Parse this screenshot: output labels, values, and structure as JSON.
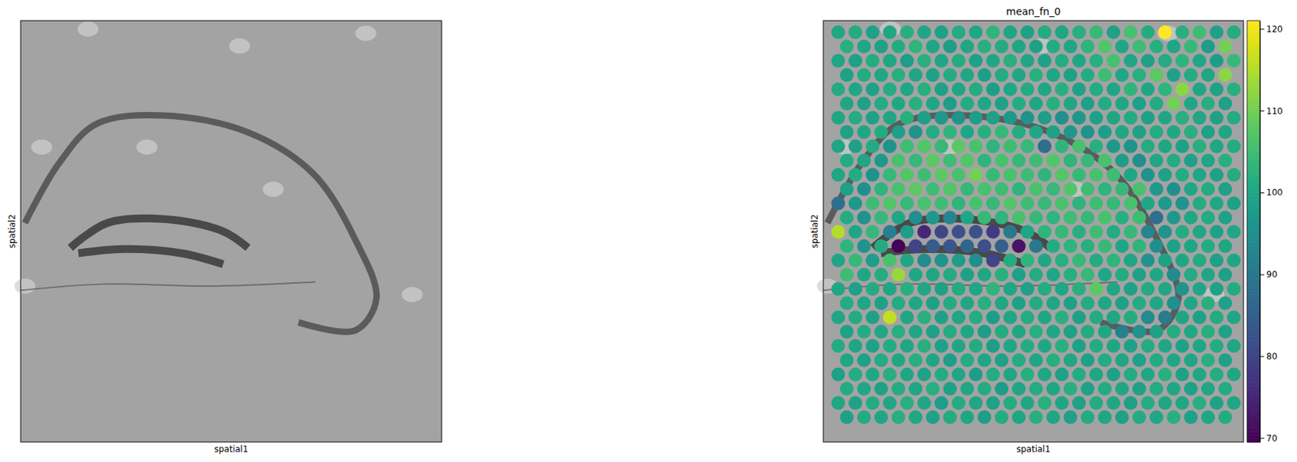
{
  "chart_data": [
    {
      "type": "image",
      "x_label": "spatial1",
      "y_label": "spatial2",
      "tick_labels": false
    },
    {
      "type": "spatial_scatter",
      "title": "mean_fn_0",
      "x_label": "spatial1",
      "y_label": "spatial2",
      "tick_labels": false,
      "cells": [
        [
          100,
          101,
          99,
          100,
          102,
          100,
          99,
          101,
          100,
          103,
          100,
          99,
          101,
          100,
          102,
          104,
          99,
          106,
          101,
          121,
          102,
          105,
          99,
          101
        ],
        [
          102,
          100,
          99,
          101,
          103,
          100,
          98,
          100,
          102,
          101,
          100,
          99,
          101,
          100,
          103,
          107,
          100,
          105,
          102,
          100,
          104,
          98,
          110
        ],
        [
          100,
          99,
          101,
          100,
          98,
          102,
          100,
          101,
          99,
          100,
          102,
          100,
          99,
          101,
          100,
          102,
          106,
          100,
          99,
          101,
          103,
          100,
          98,
          104
        ],
        [
          99,
          101,
          100,
          102,
          100,
          99,
          101,
          100,
          98,
          101,
          100,
          102,
          100,
          99,
          101,
          105,
          100,
          102,
          108,
          99,
          101,
          100,
          112
        ],
        [
          101,
          100,
          99,
          101,
          100,
          102,
          99,
          100,
          101,
          98,
          100,
          101,
          100,
          102,
          99,
          101,
          100,
          103,
          100,
          103,
          112,
          100,
          99,
          102
        ],
        [
          100,
          99,
          101,
          100,
          102,
          100,
          98,
          101,
          100,
          99,
          101,
          100,
          102,
          100,
          99,
          101,
          100,
          99,
          101,
          110,
          100,
          102,
          99
        ],
        [
          100,
          101,
          99,
          100,
          102,
          98,
          97,
          96,
          98,
          99,
          97,
          96,
          98,
          95,
          97,
          99,
          100,
          101,
          99,
          100,
          102,
          100,
          99,
          101
        ],
        [
          99,
          100,
          101,
          98,
          96,
          101,
          103,
          100,
          102,
          104,
          101,
          100,
          99,
          97,
          96,
          98,
          100,
          99,
          101,
          100,
          102,
          99,
          100
        ],
        [
          100,
          99,
          101,
          96,
          105,
          107,
          104,
          108,
          106,
          103,
          105,
          104,
          88,
          103,
          106,
          102,
          97,
          96,
          101,
          100,
          99,
          102,
          100,
          101
        ],
        [
          101,
          100,
          97,
          106,
          104,
          108,
          105,
          107,
          103,
          106,
          104,
          105,
          107,
          103,
          104,
          106,
          98,
          95,
          100,
          101,
          99,
          100,
          102
        ],
        [
          100,
          101,
          96,
          104,
          107,
          105,
          108,
          106,
          110,
          104,
          106,
          105,
          103,
          107,
          104,
          106,
          105,
          100,
          96,
          99,
          101,
          100,
          99,
          101
        ],
        [
          99,
          95,
          103,
          106,
          108,
          105,
          107,
          104,
          106,
          105,
          103,
          106,
          104,
          107,
          105,
          103,
          104,
          106,
          97,
          95,
          100,
          101,
          99
        ],
        [
          88,
          97,
          105,
          107,
          104,
          106,
          105,
          103,
          106,
          104,
          107,
          105,
          104,
          106,
          103,
          105,
          104,
          106,
          100,
          97,
          96,
          101,
          100,
          99
        ],
        [
          101,
          96,
          104,
          100,
          95,
          97,
          93,
          100,
          104,
          103,
          106,
          104,
          103,
          105,
          104,
          106,
          102,
          105,
          88,
          97,
          100,
          101,
          99
        ],
        [
          115,
          100,
          104,
          92,
          98,
          75,
          80,
          82,
          82,
          78,
          90,
          100,
          103,
          104,
          102,
          105,
          101,
          104,
          93,
          96,
          101,
          100,
          99,
          100
        ],
        [
          103,
          96,
          101,
          70,
          80,
          84,
          83,
          86,
          82,
          85,
          72,
          90,
          101,
          103,
          102,
          104,
          100,
          103,
          95,
          99,
          100,
          101,
          100
        ],
        [
          100,
          104,
          98,
          106,
          100,
          94,
          96,
          98,
          95,
          80,
          101,
          103,
          100,
          102,
          104,
          101,
          103,
          100,
          96,
          99,
          100,
          101,
          99,
          100
        ],
        [
          105,
          100,
          101,
          113,
          100,
          100,
          101,
          99,
          100,
          102,
          99,
          101,
          100,
          102,
          104,
          100,
          101,
          99,
          100,
          94,
          101,
          100,
          99
        ],
        [
          100,
          99,
          101,
          100,
          102,
          100,
          99,
          101,
          100,
          103,
          100,
          99,
          101,
          100,
          102,
          108,
          100,
          99,
          101,
          100,
          96,
          100,
          99,
          101
        ],
        [
          101,
          100,
          99,
          101,
          100,
          99,
          101,
          100,
          102,
          100,
          99,
          101,
          100,
          99,
          101,
          100,
          99,
          101,
          100,
          95,
          100,
          102,
          99
        ],
        [
          100,
          101,
          99,
          116,
          100,
          102,
          99,
          100,
          101,
          98,
          100,
          101,
          100,
          102,
          99,
          101,
          100,
          101,
          94,
          91,
          100,
          99,
          101,
          100
        ],
        [
          99,
          101,
          100,
          102,
          100,
          99,
          101,
          100,
          98,
          101,
          100,
          102,
          100,
          99,
          101,
          100,
          92,
          96,
          99,
          101,
          100,
          102,
          99
        ],
        [
          101,
          100,
          99,
          101,
          100,
          102,
          99,
          100,
          101,
          98,
          100,
          101,
          100,
          102,
          99,
          101,
          100,
          99,
          101,
          100,
          99,
          100,
          101,
          100
        ],
        [
          100,
          99,
          101,
          100,
          102,
          100,
          98,
          101,
          100,
          99,
          101,
          100,
          102,
          100,
          99,
          101,
          100,
          99,
          101,
          100,
          100,
          102,
          99
        ],
        [
          99,
          101,
          100,
          102,
          100,
          99,
          101,
          100,
          98,
          101,
          100,
          102,
          100,
          99,
          101,
          100,
          99,
          101,
          100,
          102,
          99,
          100,
          101,
          100
        ],
        [
          101,
          100,
          99,
          101,
          100,
          102,
          99,
          100,
          101,
          98,
          100,
          101,
          100,
          102,
          99,
          101,
          100,
          99,
          101,
          100,
          99,
          100,
          101
        ],
        [
          100,
          99,
          101,
          100,
          102,
          100,
          98,
          101,
          100,
          99,
          101,
          100,
          102,
          100,
          99,
          101,
          100,
          99,
          101,
          100,
          100,
          102,
          99,
          100
        ],
        [
          99,
          101,
          100,
          102,
          100,
          99,
          101,
          100,
          98,
          101,
          100,
          102,
          100,
          99,
          101,
          100,
          99,
          101,
          100,
          102,
          99,
          100,
          101
        ]
      ],
      "colorbar": {
        "range": [
          69.5,
          121
        ],
        "ticks": [
          70,
          80,
          90,
          100,
          110,
          120
        ]
      }
    }
  ]
}
